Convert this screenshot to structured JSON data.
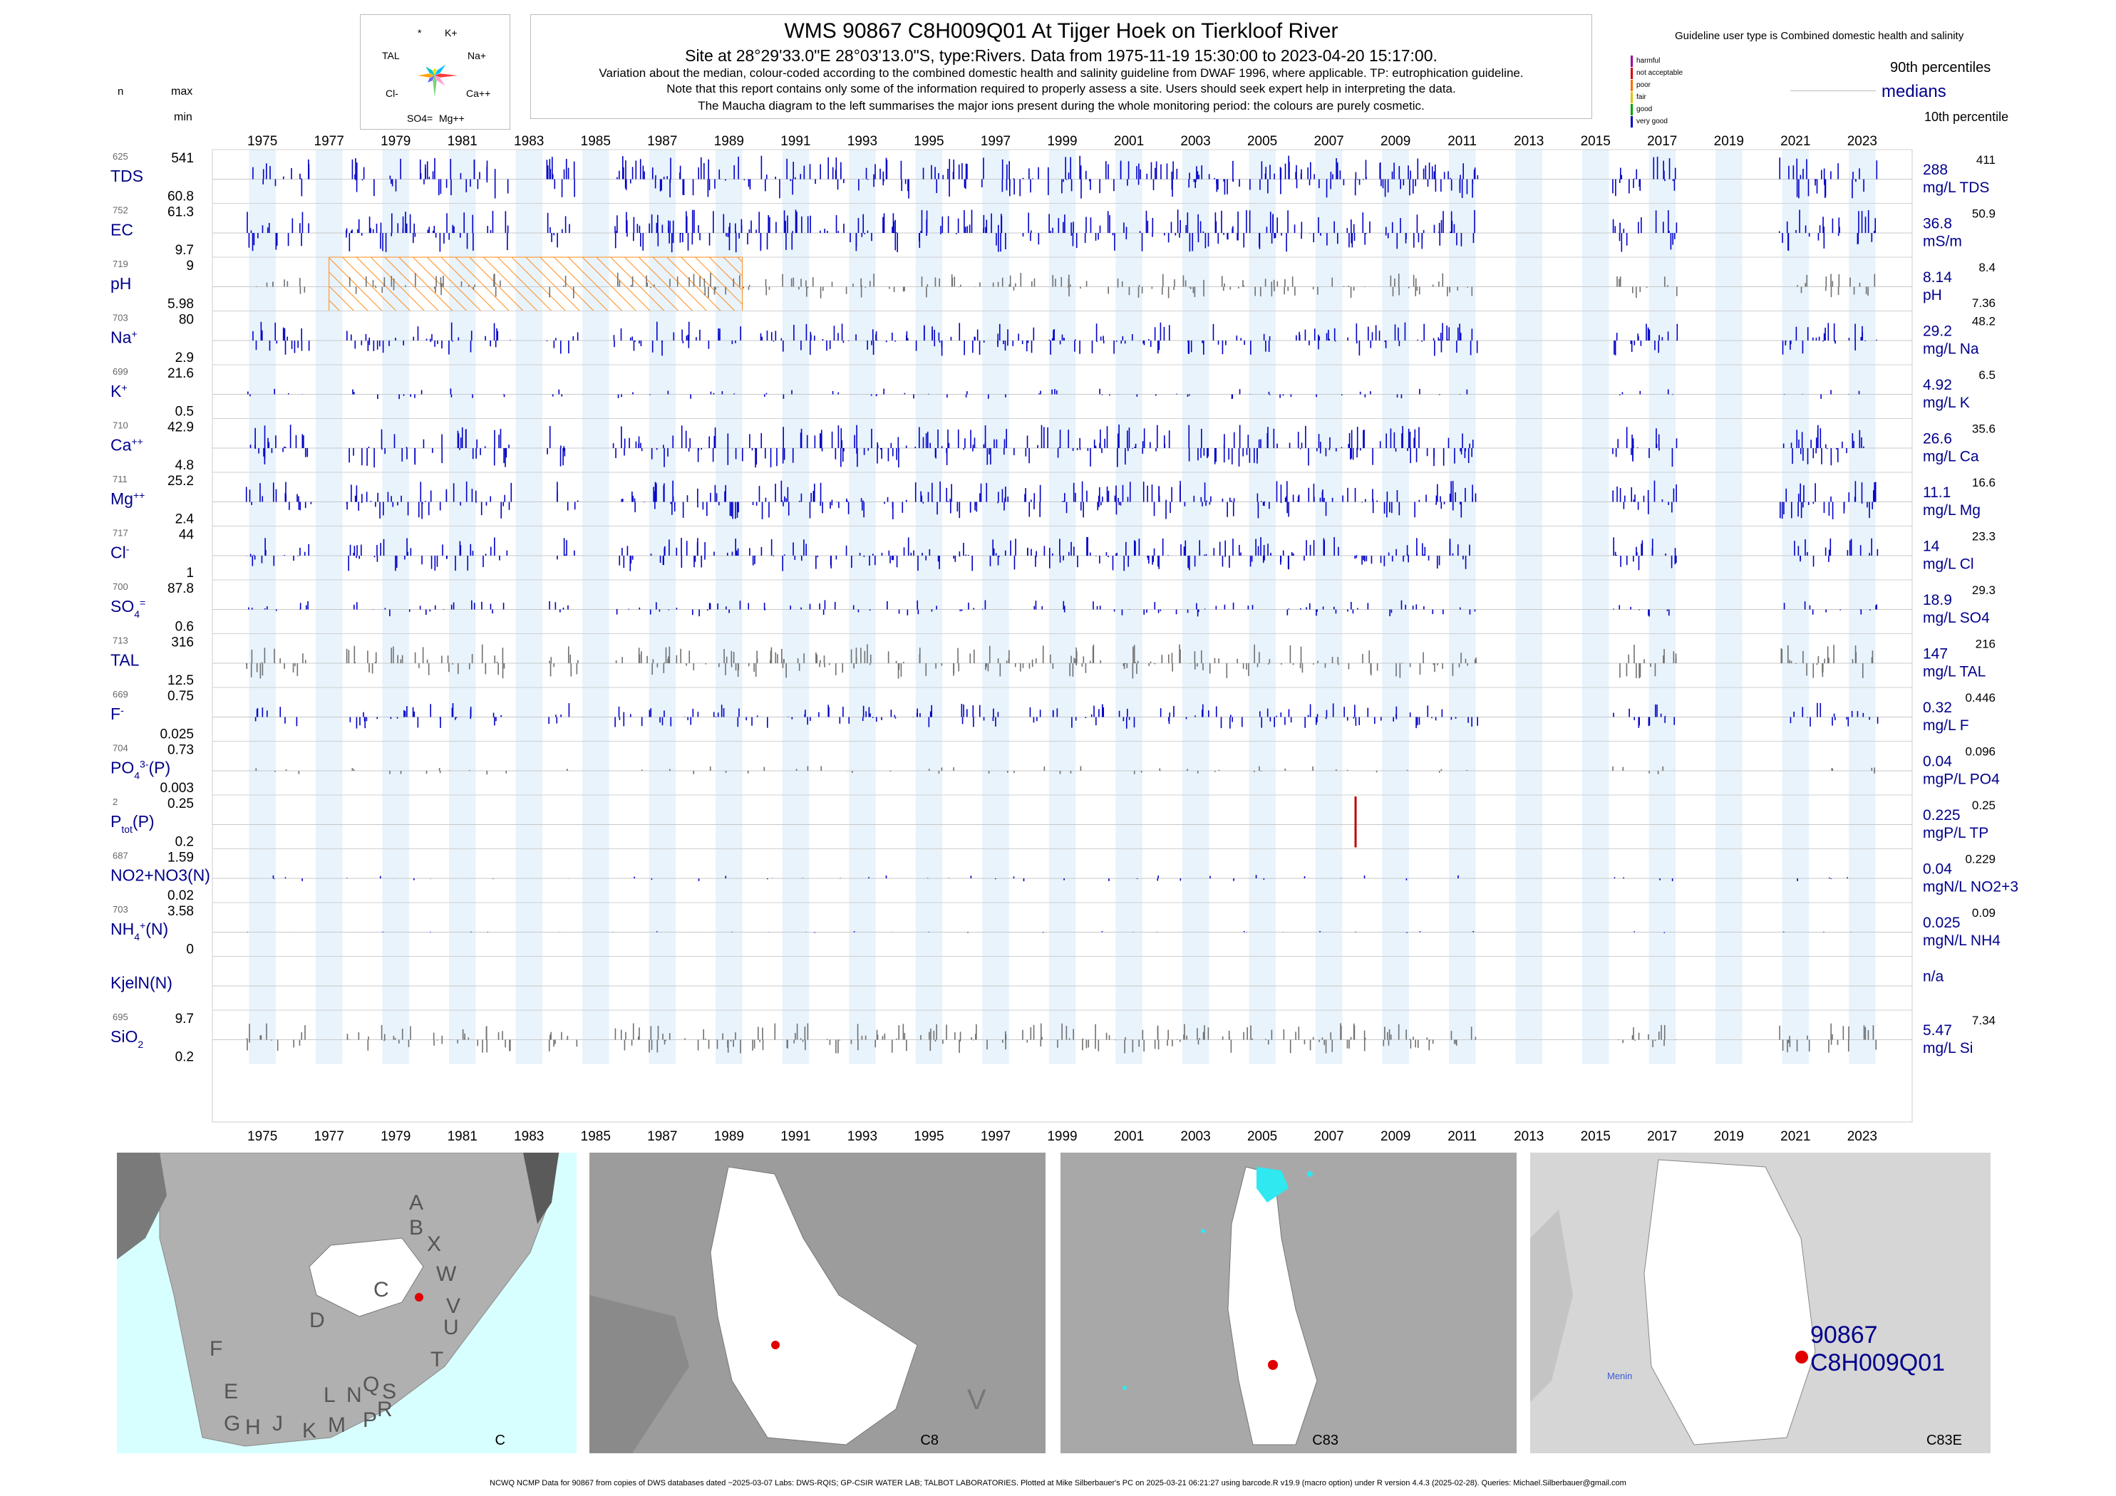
{
  "header": {
    "title": "WMS 90867 C8H009Q01 At Tijger Hoek on Tierkloof River",
    "subtitle": "Site at 28°29'33.0\"E 28°03'13.0\"S, type:Rivers.  Data from 1975-11-19 15:30:00 to 2023-04-20 15:17:00.",
    "line1": "Variation about the median,  colour-coded according to the combined domestic health and salinity guideline from DWAF 1996, where applicable. TP: eutrophication guideline.",
    "line2": "Note that this report contains only some of the information required to properly assess a site. Users should seek expert help in interpreting the data.",
    "line3": "The Maucha diagram to the left summarises the major ions present during the whole monitoring period: the colours are purely cosmetic."
  },
  "left_header": {
    "n": "n",
    "max": "max",
    "min": "min"
  },
  "maucha": {
    "labels": [
      "*",
      "K+",
      "TAL",
      "Na+",
      "Cl-",
      "Ca++",
      "SO4=",
      "Mg++"
    ],
    "colors": [
      "#ffe000",
      "#00bfff",
      "#ff3b3b",
      "#ff9ad5",
      "#7bd27b",
      "#6a6aff",
      "#ffa500",
      "#00c8c8"
    ]
  },
  "legend": {
    "guideline_text": "Guideline user type is Combined domestic health and salinity",
    "categories": [
      {
        "label": "harmful",
        "color": "#9b009b"
      },
      {
        "label": "not acceptable",
        "color": "#d40000"
      },
      {
        "label": "poor",
        "color": "#ff6a00"
      },
      {
        "label": "fair",
        "color": "#e0c000"
      },
      {
        "label": "good",
        "color": "#00a000"
      },
      {
        "label": "very good",
        "color": "#0000c8"
      }
    ],
    "p90": "90th percentiles",
    "medians": "medians",
    "p10": "10th percentile"
  },
  "chart_data": {
    "type": "bar",
    "x_range": [
      1974,
      2025
    ],
    "year_ticks": [
      "1975",
      "1977",
      "1979",
      "1981",
      "1983",
      "1985",
      "1987",
      "1989",
      "1991",
      "1993",
      "1995",
      "1997",
      "1999",
      "2001",
      "2003",
      "2005",
      "2007",
      "2009",
      "2011",
      "2013",
      "2015",
      "2017",
      "2019",
      "2021",
      "2023"
    ],
    "sampled_years": [
      1975,
      1976,
      1978,
      1979,
      1980,
      1981,
      1982,
      1984,
      1986,
      1987,
      1988,
      1989,
      1990,
      1991,
      1992,
      1993,
      1994,
      1995,
      1996,
      1997,
      1998,
      1999,
      2000,
      2001,
      2002,
      2003,
      2004,
      2005,
      2006,
      2007,
      2008,
      2009,
      2010,
      2011,
      2016,
      2017,
      2021,
      2022,
      2023
    ],
    "ph_hatched_range": [
      1977.5,
      1989.9
    ],
    "variables": [
      {
        "n": "625",
        "name": "TDS",
        "sup": "",
        "sub": "",
        "max": "541",
        "min": "60.8",
        "median": "288",
        "unit": "mg/L TDS",
        "p90": "411",
        "p10": "",
        "color": "#0000c8",
        "density": 1.0
      },
      {
        "n": "752",
        "name": "EC",
        "sup": "",
        "sub": "",
        "max": "61.3",
        "min": "9.7",
        "median": "36.8",
        "unit": "mS/m",
        "p90": "50.9",
        "p10": "",
        "color": "#0000c8",
        "density": 1.0
      },
      {
        "n": "719",
        "name": "pH",
        "sup": "",
        "sub": "",
        "max": "9",
        "min": "5.98",
        "median": "8.14",
        "unit": "pH",
        "p90": "8.4",
        "p10": "7.36",
        "color": "#707070",
        "density": 0.6
      },
      {
        "n": "703",
        "name": "Na",
        "sup": "+",
        "sub": "",
        "max": "80",
        "min": "2.9",
        "median": "29.2",
        "unit": "mg/L Na",
        "p90": "48.2",
        "p10": "",
        "color": "#0000c8",
        "density": 0.8
      },
      {
        "n": "699",
        "name": "K",
        "sup": "+",
        "sub": "",
        "max": "21.6",
        "min": "0.5",
        "median": "4.92",
        "unit": "mg/L K",
        "p90": "6.5",
        "p10": "",
        "color": "#0000c8",
        "density": 0.25
      },
      {
        "n": "710",
        "name": "Ca",
        "sup": "++",
        "sub": "",
        "max": "42.9",
        "min": "4.8",
        "median": "26.6",
        "unit": "mg/L Ca",
        "p90": "35.6",
        "p10": "",
        "color": "#0000c8",
        "density": 1.0
      },
      {
        "n": "711",
        "name": "Mg",
        "sup": "++",
        "sub": "",
        "max": "25.2",
        "min": "2.4",
        "median": "11.1",
        "unit": "mg/L Mg",
        "p90": "16.6",
        "p10": "",
        "color": "#0000c8",
        "density": 0.9
      },
      {
        "n": "717",
        "name": "Cl",
        "sup": "-",
        "sub": "",
        "max": "44",
        "min": "1",
        "median": "14",
        "unit": "mg/L Cl",
        "p90": "23.3",
        "p10": "",
        "color": "#0000c8",
        "density": 0.8
      },
      {
        "n": "700",
        "name": "SO",
        "sup": "=",
        "sub": "4",
        "max": "87.8",
        "min": "0.6",
        "median": "18.9",
        "unit": "mg/L SO4",
        "p90": "29.3",
        "p10": "",
        "color": "#0000c8",
        "density": 0.4
      },
      {
        "n": "713",
        "name": "TAL",
        "sup": "",
        "sub": "",
        "max": "316",
        "min": "12.5",
        "median": "147",
        "unit": "mg/L TAL",
        "p90": "216",
        "p10": "",
        "color": "#707070",
        "density": 0.8
      },
      {
        "n": "669",
        "name": "F",
        "sup": "-",
        "sub": "",
        "max": "0.75",
        "min": "0.025",
        "median": "0.32",
        "unit": "mg/L F",
        "p90": "0.446",
        "p10": "",
        "color": "#0000c8",
        "density": 0.6
      },
      {
        "n": "704",
        "name": "PO",
        "sup": "3-",
        "sub": "4",
        "suffix": "(P)",
        "max": "0.73",
        "min": "0.003",
        "median": "0.04",
        "unit": "mgP/L PO4",
        "p90": "0.096",
        "p10": "",
        "color": "#707070",
        "density": 0.2
      },
      {
        "n": "2",
        "name": "P",
        "sup": "",
        "sub": "tot",
        "suffix": "(P)",
        "max": "0.25",
        "min": "0.2",
        "median": "0.225",
        "unit": "mgP/L TP",
        "p90": "0.25",
        "p10": "",
        "color": "#c00000",
        "density": 0
      },
      {
        "n": "687",
        "name": "NO2+NO3(N)",
        "sup": "",
        "sub": "",
        "max": "1.59",
        "min": "0.02",
        "median": "0.04",
        "unit": "mgN/L NO2+3",
        "p90": "0.229",
        "p10": "",
        "color": "#0000c8",
        "density": 0.15
      },
      {
        "n": "703",
        "name": "NH",
        "sup": "+",
        "sub": "4",
        "suffix": "(N)",
        "max": "3.58",
        "min": "0",
        "median": "0.025",
        "unit": "mgN/L NH4",
        "p90": "0.09",
        "p10": "",
        "color": "#0000c8",
        "density": 0.05
      },
      {
        "n": "",
        "name": "KjelN(N)",
        "sup": "",
        "sub": "",
        "max": "",
        "min": "",
        "median": "n/a",
        "unit": "",
        "p90": "",
        "p10": "",
        "color": "#0000c8",
        "density": 0
      },
      {
        "n": "695",
        "name": "SiO",
        "sup": "",
        "sub": "2",
        "max": "9.7",
        "min": "0.2",
        "median": "5.47",
        "unit": "mg/L Si",
        "p90": "7.34",
        "p10": "",
        "color": "#707070",
        "density": 0.7
      }
    ]
  },
  "maps": [
    {
      "caption": "C",
      "letters": [
        "A",
        "B",
        "X",
        "W",
        "C",
        "V",
        "U",
        "T",
        "D",
        "F",
        "E",
        "G",
        "H",
        "J",
        "K",
        "L",
        "M",
        "N",
        "P",
        "Q",
        "R",
        "S"
      ]
    },
    {
      "caption": "C8",
      "letters": [
        "V"
      ]
    },
    {
      "caption": "C83",
      "letters": []
    },
    {
      "caption": "C83E",
      "site_id": "90867",
      "site_code": "C8H009Q01",
      "place": "Menin"
    }
  ],
  "footer": "NCWQ NCMP Data for 90867 from copies of DWS databases dated ~2025-03-07 Labs: DWS-RQIS; GP-CSIR WATER LAB; TALBOT LABORATORIES. Plotted at Mike Silberbauer's PC on 2025-03-21 06:21:27 using barcode.R v19.9 (macro option) under R version 4.4.3 (2025-02-28). Queries: Michael.Silberbauer@gmail.com"
}
